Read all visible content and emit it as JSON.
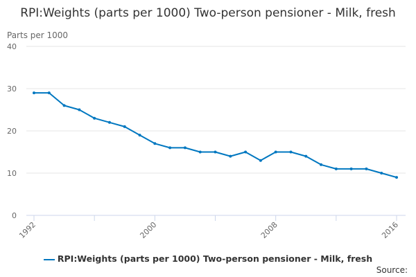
{
  "chart_data": {
    "type": "line",
    "title": "RPI:Weights (parts per 1000) Two-person pensioner - Milk, fresh",
    "ylabel": "Parts per 1000",
    "xlabel": "",
    "x": [
      1992,
      1993,
      1994,
      1995,
      1996,
      1997,
      1998,
      1999,
      2000,
      2001,
      2002,
      2003,
      2004,
      2005,
      2006,
      2007,
      2008,
      2009,
      2010,
      2011,
      2012,
      2013,
      2014,
      2015,
      2016
    ],
    "series": [
      {
        "name": "RPI:Weights (parts per 1000) Two-person pensioner - Milk, fresh",
        "color": "#0077c0",
        "values": [
          29,
          29,
          26,
          25,
          23,
          22,
          21,
          19,
          17,
          16,
          16,
          15,
          15,
          14,
          15,
          13,
          15,
          15,
          14,
          12,
          11,
          11,
          11,
          10,
          9
        ]
      }
    ],
    "ylim": [
      0,
      40
    ],
    "yticks": [
      "0",
      "10",
      "20",
      "30",
      "40"
    ],
    "xticks": [
      "1992",
      "2000",
      "2008",
      "2016"
    ],
    "grid": true,
    "legend": "bottom"
  },
  "source_label": "Source:"
}
